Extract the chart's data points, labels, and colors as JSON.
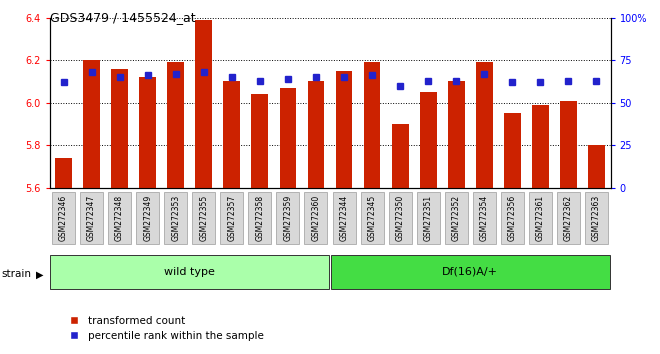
{
  "title": "GDS3479 / 1455524_at",
  "samples": [
    "GSM272346",
    "GSM272347",
    "GSM272348",
    "GSM272349",
    "GSM272353",
    "GSM272355",
    "GSM272357",
    "GSM272358",
    "GSM272359",
    "GSM272360",
    "GSM272344",
    "GSM272345",
    "GSM272350",
    "GSM272351",
    "GSM272352",
    "GSM272354",
    "GSM272356",
    "GSM272361",
    "GSM272362",
    "GSM272363"
  ],
  "transformed_count": [
    5.74,
    6.2,
    6.16,
    6.12,
    6.19,
    6.39,
    6.1,
    6.04,
    6.07,
    6.1,
    6.15,
    6.19,
    5.9,
    6.05,
    6.1,
    6.19,
    5.95,
    5.99,
    6.01,
    5.8
  ],
  "percentile_rank": [
    62,
    68,
    65,
    66,
    67,
    68,
    65,
    63,
    64,
    65,
    65,
    66,
    60,
    63,
    63,
    67,
    62,
    62,
    63,
    63
  ],
  "groups": [
    {
      "label": "wild type",
      "start": 0,
      "end": 10,
      "color": "#aaffaa"
    },
    {
      "label": "Df(16)A/+",
      "start": 10,
      "end": 20,
      "color": "#44dd44"
    }
  ],
  "ylim": [
    5.6,
    6.4
  ],
  "yticks_left": [
    5.6,
    5.8,
    6.0,
    6.2,
    6.4
  ],
  "yticks_right": [
    0,
    25,
    50,
    75,
    100
  ],
  "bar_color": "#cc2200",
  "dot_color": "#2222cc",
  "bar_width": 0.6,
  "background_color": "#ffffff",
  "legend_items": [
    "transformed count",
    "percentile rank within the sample"
  ],
  "strain_label": "strain"
}
